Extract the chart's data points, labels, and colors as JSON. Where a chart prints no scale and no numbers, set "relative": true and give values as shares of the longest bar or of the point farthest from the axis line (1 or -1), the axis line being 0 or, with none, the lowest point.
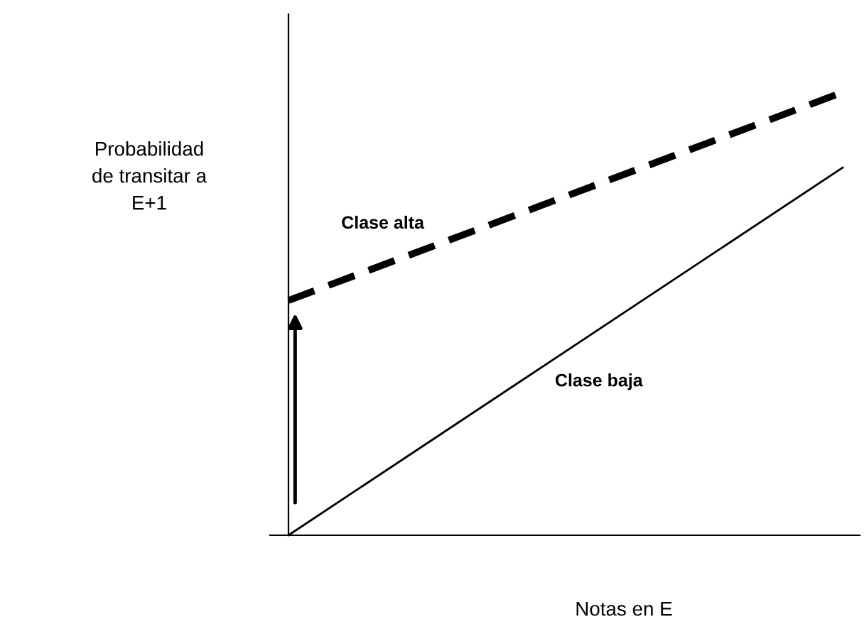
{
  "chart_data": {
    "type": "line",
    "relative": true,
    "xlabel": "Notas en E",
    "ylabel": "Probabilidad\nde transitar a\nE+1",
    "categories": [
      null,
      null
    ],
    "grid": false,
    "legend": false,
    "marker": "none",
    "series": [
      {
        "name": "Clase alta",
        "color": "#000000",
        "line_style": "dashed",
        "values": [
          0.53,
          1
        ]
      },
      {
        "name": "Clase baja",
        "color": "#000000",
        "line_style": "solid",
        "values": [
          0,
          0.83
        ]
      }
    ]
  }
}
